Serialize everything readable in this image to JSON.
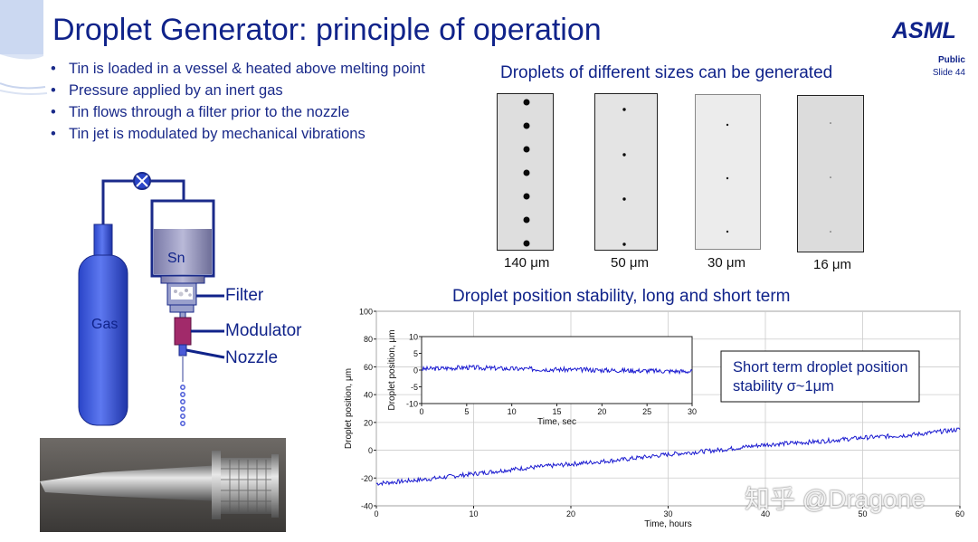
{
  "slide": {
    "title": "Droplet Generator: principle of operation",
    "logo": "ASML",
    "classification": "Public",
    "slide_number": "Slide 44"
  },
  "bullets": [
    "Tin is loaded in a vessel & heated above melting point",
    "Pressure applied by an inert gas",
    "Tin flows through a filter prior to the nozzle",
    "Tin jet is modulated by mechanical vibrations"
  ],
  "schematic": {
    "gas_label": "Gas",
    "sn_label": "Sn",
    "filter_label": "Filter",
    "modulator_label": "Modulator",
    "nozzle_label": "Nozzle"
  },
  "droplets": {
    "title": "Droplets of different sizes can be generated",
    "panels": [
      {
        "caption": "140 μm"
      },
      {
        "caption": "50 μm"
      },
      {
        "caption": "30 μm"
      },
      {
        "caption": "16 μm"
      }
    ]
  },
  "chart_data": [
    {
      "type": "line",
      "title": "Droplet position stability, long and short term",
      "xlabel": "Time, hours",
      "ylabel": "Droplet position, μm",
      "xlim": [
        0,
        60
      ],
      "ylim": [
        -40,
        100
      ],
      "xticks": [
        0,
        10,
        20,
        30,
        40,
        50,
        60
      ],
      "yticks": [
        -40,
        -20,
        0,
        20,
        40,
        60,
        80,
        100
      ],
      "series": [
        {
          "x": [
            0,
            5,
            10,
            15,
            20,
            25,
            30,
            35,
            40,
            45,
            50,
            55,
            60
          ],
          "y": [
            -24,
            -21,
            -17,
            -13,
            -10,
            -7,
            -3,
            0,
            4,
            6,
            9,
            11,
            15
          ]
        }
      ],
      "annotation": "Short term droplet position stability σ~1μm",
      "grid": true
    },
    {
      "type": "line",
      "xlabel": "Time, sec",
      "ylabel": "Droplet position, μm",
      "xlim": [
        0,
        30
      ],
      "ylim": [
        -10,
        10
      ],
      "xticks": [
        0,
        5,
        10,
        15,
        20,
        25,
        30
      ],
      "yticks": [
        -10,
        -5,
        0,
        5,
        10
      ],
      "series": [
        {
          "x": [
            0,
            5,
            10,
            15,
            20,
            25,
            30
          ],
          "y": [
            0.3,
            0.8,
            0.4,
            0.2,
            0.0,
            -0.2,
            -0.4
          ]
        }
      ],
      "grid": false
    }
  ]
}
